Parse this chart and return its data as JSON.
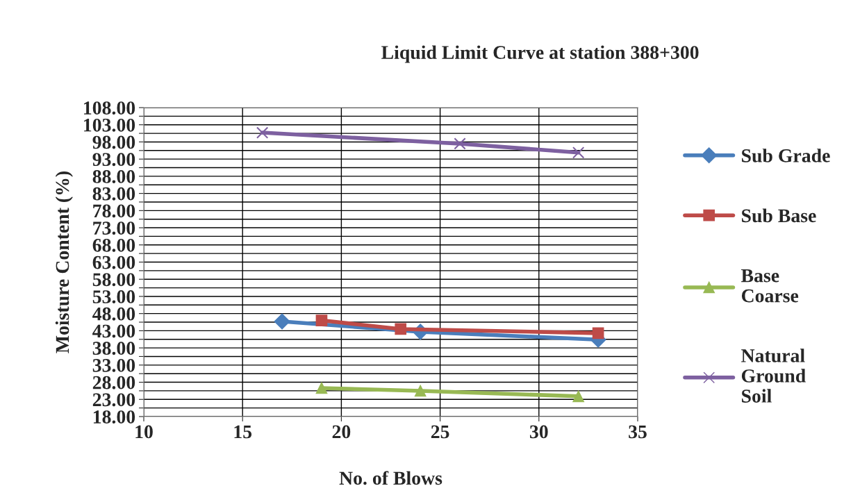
{
  "chart_data": {
    "type": "line",
    "title": "Liquid Limit Curve at station 388+300",
    "xlabel": "No. of Blows",
    "ylabel": "Moisture Content (%)",
    "xlim": [
      10,
      35
    ],
    "xticks": [
      10,
      15,
      20,
      25,
      30,
      35
    ],
    "ylim": [
      18,
      108
    ],
    "yticks": [
      {
        "value": 18,
        "label": "18.00"
      },
      {
        "value": 20.5,
        "label": null
      },
      {
        "value": 23,
        "label": "23.00"
      },
      {
        "value": 25.5,
        "label": null
      },
      {
        "value": 28,
        "label": "28.00"
      },
      {
        "value": 30.5,
        "label": null
      },
      {
        "value": 33,
        "label": "33.00"
      },
      {
        "value": 35.5,
        "label": null
      },
      {
        "value": 38,
        "label": "38.00"
      },
      {
        "value": 40.5,
        "label": null
      },
      {
        "value": 43,
        "label": "43.00"
      },
      {
        "value": 45.5,
        "label": null
      },
      {
        "value": 48,
        "label": "48.00"
      },
      {
        "value": 50.5,
        "label": null
      },
      {
        "value": 53,
        "label": "53.00"
      },
      {
        "value": 55.5,
        "label": null
      },
      {
        "value": 58,
        "label": "58.00"
      },
      {
        "value": 60.5,
        "label": null
      },
      {
        "value": 63,
        "label": "63.00"
      },
      {
        "value": 65.5,
        "label": null
      },
      {
        "value": 68,
        "label": "68.00"
      },
      {
        "value": 70.5,
        "label": null
      },
      {
        "value": 73,
        "label": "73.00"
      },
      {
        "value": 75.5,
        "label": null
      },
      {
        "value": 78,
        "label": "78.00"
      },
      {
        "value": 80.5,
        "label": null
      },
      {
        "value": 83,
        "label": "83.00"
      },
      {
        "value": 85.5,
        "label": null
      },
      {
        "value": 88,
        "label": "88.00"
      },
      {
        "value": 90.5,
        "label": null
      },
      {
        "value": 93,
        "label": "93.00"
      },
      {
        "value": 95.5,
        "label": null
      },
      {
        "value": 98,
        "label": "98.00"
      },
      {
        "value": 100.5,
        "label": null
      },
      {
        "value": 103,
        "label": "103.00"
      },
      {
        "value": 105.5,
        "label": null
      },
      {
        "value": 108,
        "label": "108.00"
      }
    ],
    "grid": true,
    "legend": "right",
    "series": [
      {
        "name": "Sub Grade",
        "color": "#4a7ebb",
        "marker": "diamond",
        "x": [
          17,
          24,
          33
        ],
        "values": [
          45.7,
          42.7,
          40.4
        ]
      },
      {
        "name": "Sub Base",
        "color": "#be4b48",
        "marker": "square",
        "x": [
          19,
          23,
          33
        ],
        "values": [
          46.0,
          43.5,
          42.3
        ]
      },
      {
        "name": "Base Coarse",
        "color": "#98b954",
        "marker": "triangle",
        "x": [
          19,
          24,
          32
        ],
        "values": [
          26.3,
          25.5,
          23.9
        ]
      },
      {
        "name": "Natural Ground Soil",
        "color": "#7d60a0",
        "marker": "cross",
        "x": [
          16,
          26,
          32
        ],
        "values": [
          100.7,
          97.5,
          94.9
        ]
      }
    ]
  }
}
